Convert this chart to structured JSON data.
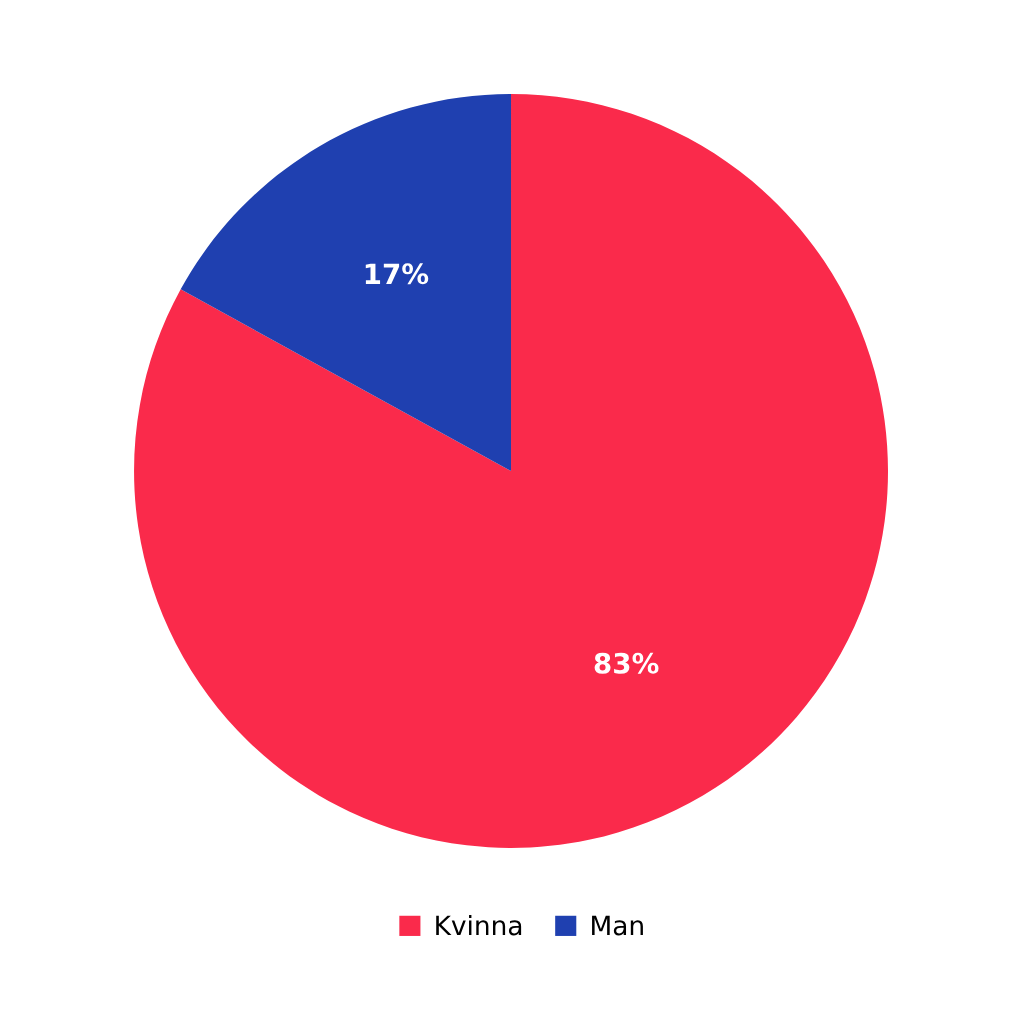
{
  "chart_data": {
    "type": "pie",
    "categories": [
      "Kvinna",
      "Man"
    ],
    "values": [
      83,
      17
    ],
    "colors": [
      "#fa2a4b",
      "#1f40b0"
    ],
    "value_labels": [
      "83%",
      "17%"
    ],
    "legend": "bottom"
  }
}
